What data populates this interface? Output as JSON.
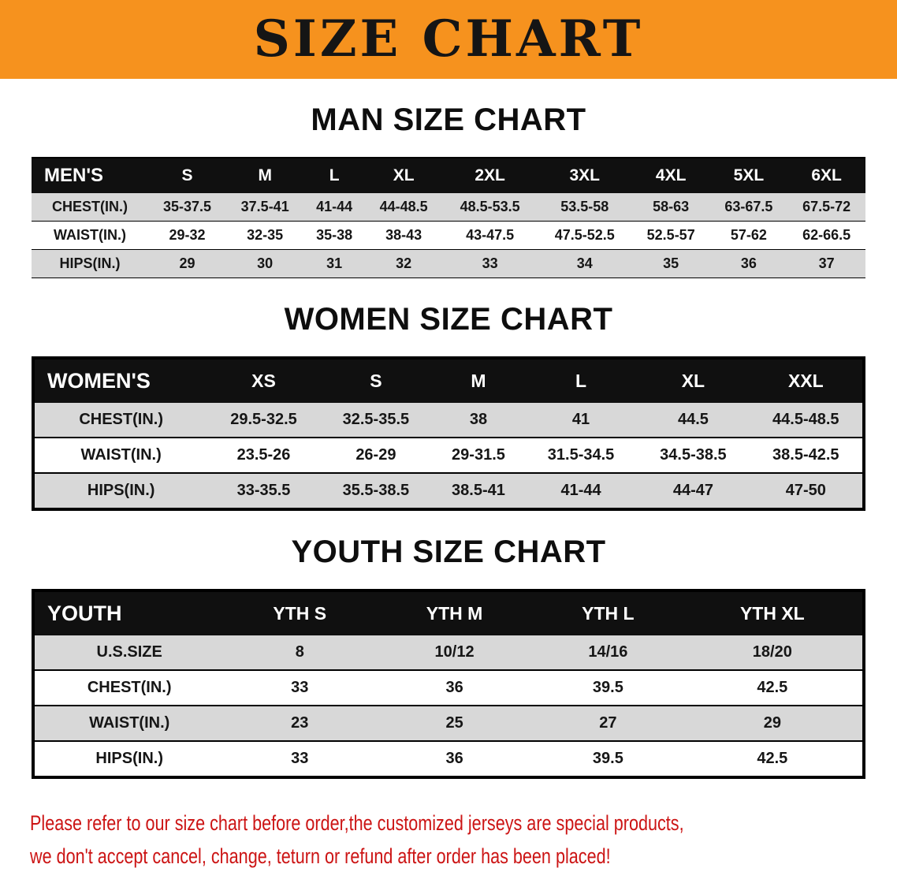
{
  "banner": {
    "title": "SIZE CHART"
  },
  "tables": [
    {
      "id": "men",
      "heading": "MAN SIZE CHART",
      "columns": [
        "MEN'S",
        "S",
        "M",
        "L",
        "XL",
        "2XL",
        "3XL",
        "4XL",
        "5XL",
        "6XL"
      ],
      "rows": [
        [
          "CHEST(IN.)",
          "35-37.5",
          "37.5-41",
          "41-44",
          "44-48.5",
          "48.5-53.5",
          "53.5-58",
          "58-63",
          "63-67.5",
          "67.5-72"
        ],
        [
          "WAIST(IN.)",
          "29-32",
          "32-35",
          "35-38",
          "38-43",
          "43-47.5",
          "47.5-52.5",
          "52.5-57",
          "57-62",
          "62-66.5"
        ],
        [
          "HIPS(IN.)",
          "29",
          "30",
          "31",
          "32",
          "33",
          "34",
          "35",
          "36",
          "37"
        ]
      ]
    },
    {
      "id": "women",
      "heading": "WOMEN SIZE CHART",
      "columns": [
        "WOMEN'S",
        "XS",
        "S",
        "M",
        "L",
        "XL",
        "XXL"
      ],
      "rows": [
        [
          "CHEST(IN.)",
          "29.5-32.5",
          "32.5-35.5",
          "38",
          "41",
          "44.5",
          "44.5-48.5"
        ],
        [
          "WAIST(IN.)",
          "23.5-26",
          "26-29",
          "29-31.5",
          "31.5-34.5",
          "34.5-38.5",
          "38.5-42.5"
        ],
        [
          "HIPS(IN.)",
          "33-35.5",
          "35.5-38.5",
          "38.5-41",
          "41-44",
          "44-47",
          "47-50"
        ]
      ]
    },
    {
      "id": "youth",
      "heading": "YOUTH SIZE CHART",
      "columns": [
        "YOUTH",
        "YTH S",
        "YTH M",
        "YTH L",
        "YTH XL"
      ],
      "rows": [
        [
          "U.S.SIZE",
          "8",
          "10/12",
          "14/16",
          "18/20"
        ],
        [
          "CHEST(IN.)",
          "33",
          "36",
          "39.5",
          "42.5"
        ],
        [
          "WAIST(IN.)",
          "23",
          "25",
          "27",
          "29"
        ],
        [
          "HIPS(IN.)",
          "33",
          "36",
          "39.5",
          "42.5"
        ]
      ]
    }
  ],
  "footer": {
    "lines": [
      "Please refer to our size chart before order,the customized jerseys are special products,",
      "we don't accept cancel, change, teturn or refund after order has been placed!"
    ]
  },
  "colors": {
    "banner_bg": "#F6921E",
    "table_header_bg": "#101010",
    "row_alt_bg": "#D8D8D8",
    "footer_text": "#CC1414"
  }
}
